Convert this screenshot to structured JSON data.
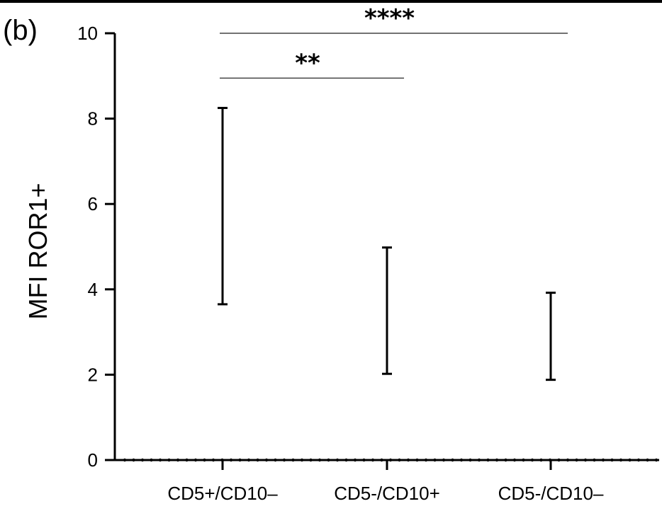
{
  "panel_label": "(b)",
  "chart_data": {
    "type": "bar",
    "ylabel": "MFI ROR1+",
    "xlabel": "",
    "ylim": [
      0,
      10
    ],
    "yticks": [
      0,
      2,
      4,
      6,
      8,
      10
    ],
    "categories": [
      "CD5+/CD10–",
      "CD5-/CD10+",
      "CD5-/CD10–"
    ],
    "ranges": [
      {
        "low": 3.65,
        "high": 8.25
      },
      {
        "low": 2.02,
        "high": 4.98
      },
      {
        "low": 1.88,
        "high": 3.92
      }
    ],
    "significance": [
      {
        "label": "****",
        "from": 0,
        "to": 2,
        "level": 10
      },
      {
        "label": "**",
        "from": 0,
        "to": 1,
        "level": 8.95
      }
    ],
    "baseline_style": "dotted"
  }
}
